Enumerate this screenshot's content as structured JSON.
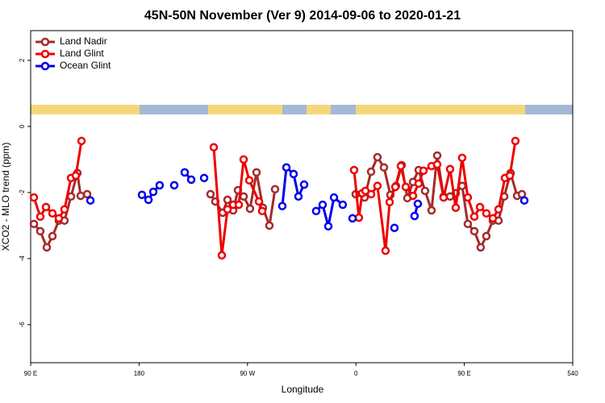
{
  "chart_data": {
    "type": "line",
    "title": "45N-50N November (Ver 9)   2014-09-06 to 2020-01-21",
    "xlabel": "Longitude",
    "ylabel": "XCO2 - MLO trend (ppm)",
    "xlim": [
      90,
      540
    ],
    "xticks": [
      {
        "value": 90,
        "label": "90 E"
      },
      180,
      {
        "value": 270,
        "label": "90 W"
      },
      {
        "value": 360,
        "label": "0"
      },
      {
        "value": 450,
        "label": "90 E"
      },
      540
    ],
    "ylim": [
      -7.15,
      2.9
    ],
    "yticks": [
      -6,
      -4,
      -2,
      0,
      2
    ],
    "legend": "top-left",
    "series": [
      {
        "name": "Land Nadir",
        "color": "#a52a2a",
        "x": [
          92.7,
          98.0,
          103.4,
          108.1,
          113.4,
          118.1,
          123.5,
          128.8,
          131.5,
          136.9,
          null,
          239.3,
          243.3,
          249.4,
          253.4,
          258.1,
          262.1,
          266.8,
          272.1,
          277.5,
          282.8,
          288.2,
          292.9,
          null,
          359.8,
          367.2,
          372.6,
          377.9,
          383.3,
          388.6,
          393.3,
          398.0,
          402.7,
          407.4,
          412.1,
          417.4,
          422.8,
          427.5,
          432.8,
          438.2,
          442.9,
          448.2,
          452.9,
          458.3,
          463.6,
          468.3,
          473.7,
          478.4,
          483.1,
          488.4,
          493.8,
          497.8
        ],
        "values": [
          -2.95,
          -3.17,
          -3.66,
          -3.32,
          -2.85,
          -2.85,
          -2.12,
          -1.41,
          -2.1,
          -2.05,
          null,
          -2.05,
          -2.27,
          -2.61,
          -2.22,
          -2.54,
          -1.93,
          -2.12,
          -2.49,
          -1.39,
          -2.46,
          -3.0,
          -1.9,
          null,
          -2.05,
          -2.15,
          -1.37,
          -0.93,
          -1.24,
          -2.07,
          -1.8,
          -1.17,
          -2.17,
          -1.68,
          -1.32,
          -1.95,
          -2.54,
          -0.88,
          -2.12,
          -2.12,
          -2.02,
          -1.8,
          -2.95,
          -3.17,
          -3.66,
          -3.32,
          -2.85,
          -2.85,
          -2.12,
          -1.41,
          -2.1,
          -2.05
        ]
      },
      {
        "name": "Land Glint",
        "color": "#ee0000",
        "x": [
          92.7,
          98.0,
          102.7,
          108.1,
          113.4,
          118.1,
          123.5,
          127.5,
          132.2,
          null,
          242.0,
          248.7,
          253.4,
          258.1,
          262.8,
          266.8,
          271.5,
          279.5,
          282.2,
          null,
          358.5,
          362.5,
          365.2,
          367.9,
          372.6,
          377.9,
          384.6,
          388.0,
          392.7,
          397.3,
          401.4,
          407.4,
          412.1,
          416.1,
          422.8,
          427.5,
          432.8,
          438.2,
          442.9,
          448.2,
          452.9,
          458.3,
          463.0,
          468.3,
          473.7,
          478.4,
          483.7,
          487.8,
          492.4
        ],
        "values": [
          -2.15,
          -2.73,
          -2.44,
          -2.63,
          -2.78,
          -2.51,
          -1.56,
          -1.49,
          -0.44,
          null,
          -0.63,
          -3.9,
          -2.51,
          -2.37,
          -2.37,
          -1.0,
          -1.63,
          -2.27,
          -2.56,
          null,
          -1.32,
          -2.76,
          -2.02,
          -1.95,
          -2.05,
          -1.8,
          -3.76,
          -2.29,
          -1.83,
          -1.2,
          -1.83,
          -2.1,
          -1.73,
          -1.34,
          -1.2,
          -1.15,
          -2.15,
          -1.29,
          -2.46,
          -0.95,
          -2.15,
          -2.73,
          -2.44,
          -2.63,
          -2.78,
          -2.51,
          -1.56,
          -1.49,
          -0.44
        ]
      },
      {
        "name": "Ocean Glint",
        "color": "#0000ee",
        "x": [
          139.6,
          null,
          182.4,
          187.8,
          191.8,
          197.1,
          null,
          209.2,
          null,
          217.9,
          223.3,
          null,
          234.0,
          null,
          298.9,
          302.3,
          308.3,
          312.3,
          317.0,
          null,
          327.0,
          332.4,
          337.1,
          341.8,
          349.1,
          null,
          357.2,
          null,
          392.0,
          null,
          408.7,
          411.4,
          null,
          499.8
        ],
        "values": [
          -2.24,
          null,
          -2.07,
          -2.22,
          -1.98,
          -1.78,
          null,
          -1.78,
          null,
          -1.39,
          -1.61,
          null,
          -1.56,
          null,
          -2.41,
          -1.24,
          -1.44,
          -2.12,
          -1.76,
          null,
          -2.56,
          -2.37,
          -3.02,
          -2.15,
          -2.37,
          null,
          -2.78,
          null,
          -3.07,
          null,
          -2.71,
          -2.34,
          null,
          -2.24
        ]
      }
    ]
  }
}
